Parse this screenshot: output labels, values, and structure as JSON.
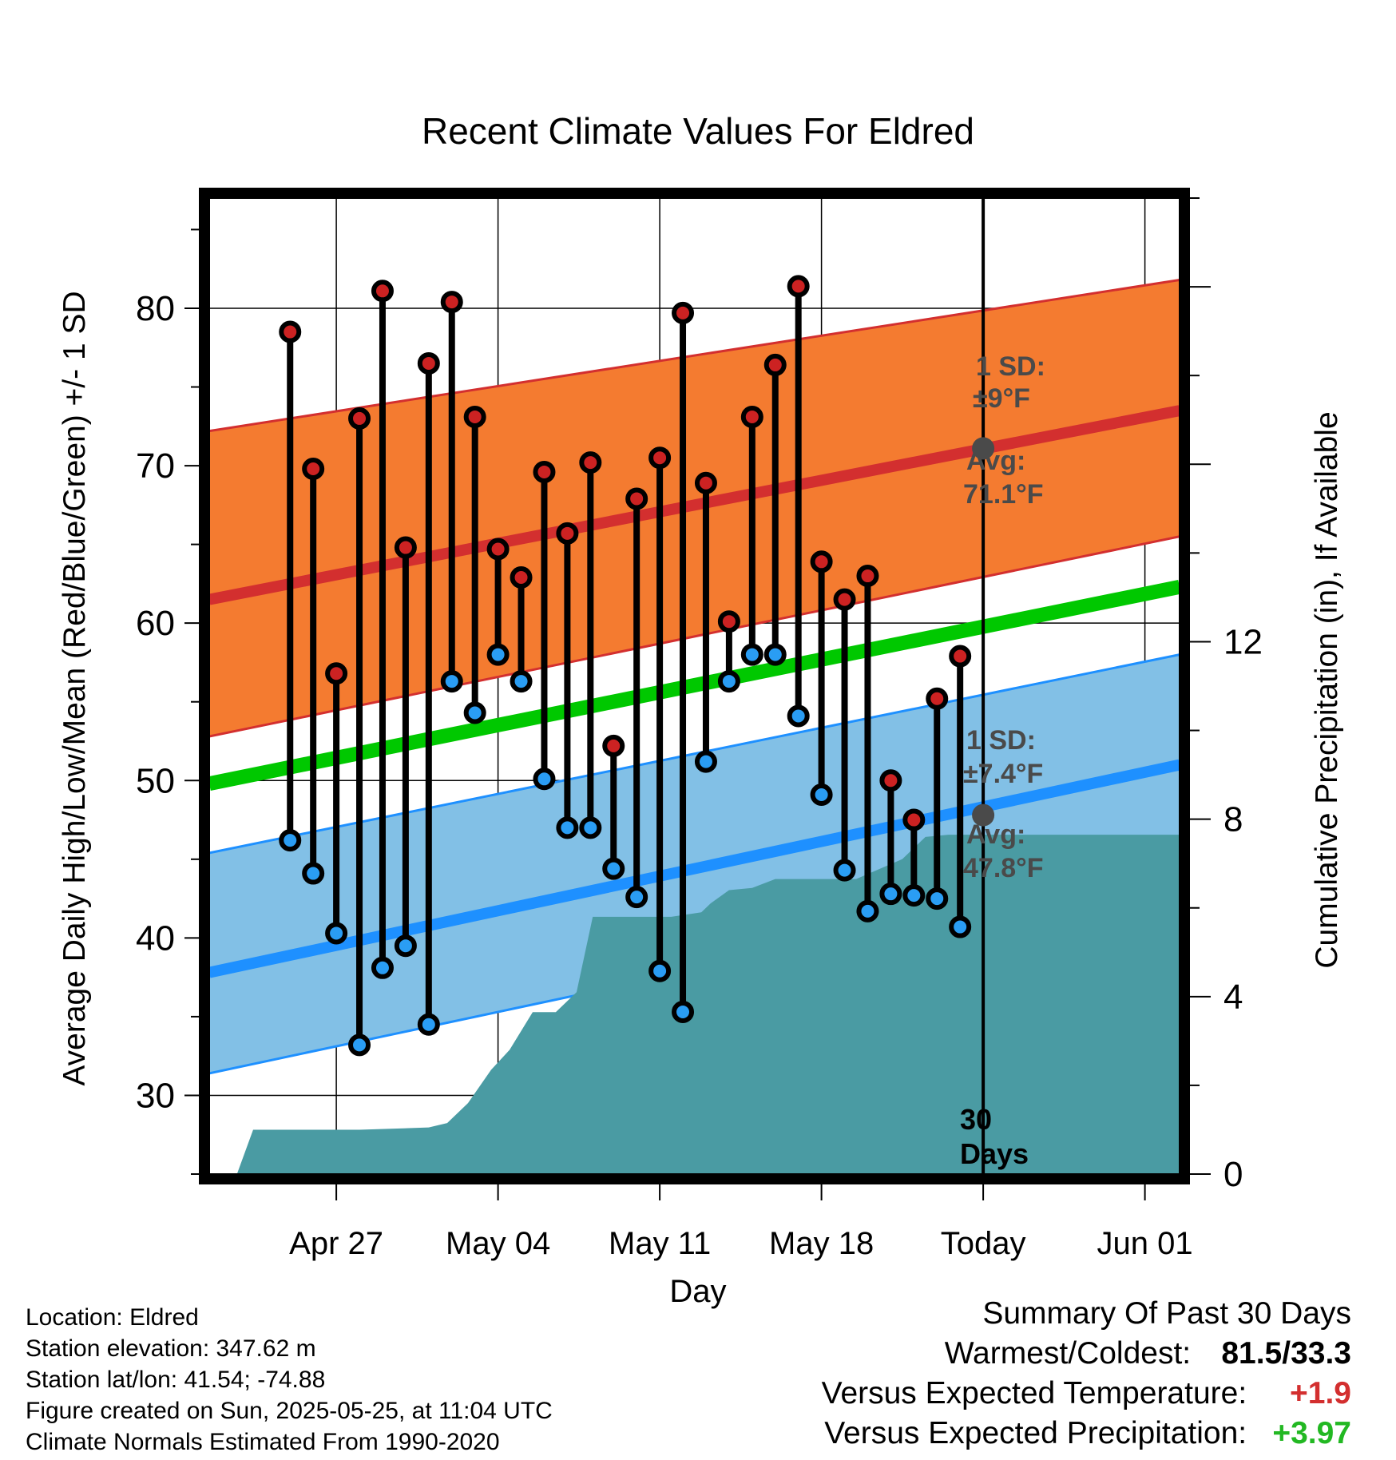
{
  "chart_data": {
    "type": "line",
    "title": "Recent Climate Values For Eldred",
    "xlabel": "Day",
    "ylabel": "Average Daily High/Low/Mean (Red/Blue/Green) +/- 1 SD",
    "y2label": "Cumulative Precipitation (in), If Available",
    "ylim": [
      25,
      87
    ],
    "y2lim": [
      0,
      22
    ],
    "xlim": [
      -33.5,
      8.5
    ],
    "x_ticks": [
      {
        "x": -28,
        "label": "Apr 27"
      },
      {
        "x": -21,
        "label": "May 04"
      },
      {
        "x": -14,
        "label": "May 11"
      },
      {
        "x": -7,
        "label": "May 18"
      },
      {
        "x": 0,
        "label": "Today"
      },
      {
        "x": 7,
        "label": "Jun 01"
      }
    ],
    "y_ticks": [
      30,
      40,
      50,
      60,
      70,
      80
    ],
    "y2_ticks": [
      0,
      4,
      8,
      12
    ],
    "grid": true,
    "today_marker_label": [
      "30",
      "Days"
    ],
    "normals": {
      "x": [
        -33.5,
        8.5
      ],
      "high_avg": [
        61.5,
        73.5
      ],
      "high_sd_upper": [
        72.2,
        81.8
      ],
      "high_sd_lower": [
        52.8,
        65.5
      ],
      "low_avg": [
        37.8,
        51.0
      ],
      "low_sd_upper": [
        45.4,
        58.0
      ],
      "low_sd_lower": [
        31.4,
        44.5
      ],
      "mean_avg": [
        49.8,
        62.3
      ]
    },
    "today_high": {
      "avg_label": "Avg:",
      "avg_value": "71.1°F",
      "sd_label": "1 SD:",
      "sd_value": "±9°F",
      "avg": 71.1
    },
    "today_low": {
      "avg_label": "Avg:",
      "avg_value": "47.8°F",
      "sd_label": "1 SD:",
      "sd_value": "±7.4°F",
      "avg": 47.8
    },
    "daily": {
      "x": [
        -30,
        -29,
        -28,
        -27,
        -26,
        -25,
        -24,
        -23,
        -22,
        -21,
        -20,
        -19,
        -18,
        -17,
        -16,
        -15,
        -14,
        -13,
        -12,
        -11,
        -10,
        -9,
        -8,
        -7,
        -6,
        -5,
        -4,
        -3,
        -2,
        -1
      ],
      "highs": [
        78.5,
        69.8,
        56.8,
        73.0,
        81.1,
        64.8,
        76.5,
        80.4,
        73.1,
        64.7,
        62.9,
        69.6,
        65.7,
        70.2,
        52.2,
        67.9,
        70.5,
        79.7,
        68.9,
        60.1,
        73.1,
        76.4,
        81.4,
        63.9,
        61.5,
        63.0,
        50.0,
        47.5,
        55.2,
        57.9
      ],
      "lows": [
        46.2,
        44.1,
        40.3,
        33.2,
        38.1,
        39.5,
        34.5,
        56.3,
        54.3,
        58.0,
        56.3,
        50.1,
        47.0,
        47.0,
        44.4,
        42.6,
        37.9,
        35.3,
        51.2,
        56.3,
        58.0,
        58.0,
        54.1,
        49.1,
        44.3,
        41.7,
        42.8,
        42.7,
        42.5,
        40.7
      ]
    },
    "precip": {
      "x": [
        -32.3,
        -31.6,
        -30.8,
        -29.5,
        -27.0,
        -24.0,
        -23.2,
        -22.3,
        -21.3,
        -20.5,
        -19.5,
        -18.5,
        -17.6,
        -16.9,
        -16.1,
        -15.0,
        -13.5,
        -12.2,
        -11.8,
        -11.0,
        -10.0,
        -9.0,
        -8.0,
        -5.5,
        -3.5,
        -2.5,
        -1.5,
        0.0,
        8.5
      ],
      "values": [
        0,
        1.0,
        1.0,
        1.0,
        1.0,
        1.05,
        1.15,
        1.6,
        2.35,
        2.8,
        3.65,
        3.65,
        4.1,
        5.8,
        5.8,
        5.8,
        5.8,
        5.9,
        6.1,
        6.4,
        6.45,
        6.65,
        6.65,
        6.65,
        7.1,
        7.6,
        7.65,
        7.65,
        7.65
      ]
    }
  },
  "footer": {
    "location": "Location: Eldred",
    "elevation": "Station elevation: 347.62 m",
    "latlon": "Station lat/lon: 41.54; -74.88",
    "created": "Figure created on Sun, 2025-05-25, at 11:04 UTC",
    "normals": "Climate Normals Estimated From 1990-2020"
  },
  "summary": {
    "heading": "Summary Of Past 30 Days",
    "warmest_label": "Warmest/Coldest:",
    "warmest_value": "81.5/33.3",
    "temp_label": "Versus Expected Temperature:",
    "temp_value": "+1.9",
    "precip_label": "Versus Expected Precipitation:",
    "precip_value": "+3.97"
  },
  "colors": {
    "high_band": "#f47b30",
    "high_line": "#d32f2f",
    "low_band": "#82c0e6",
    "low_line": "#1e90ff",
    "mean_line": "#00c800",
    "precip": "#4a9ba3",
    "high_dot": "#cc2222",
    "low_dot": "#2a9df4",
    "label_gray": "#4a4a4a"
  }
}
